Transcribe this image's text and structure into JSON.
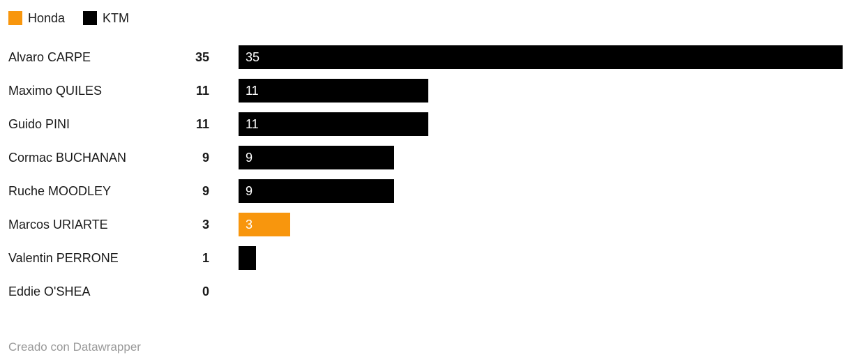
{
  "legend": {
    "items": [
      {
        "id": "honda",
        "label": "Honda",
        "color": "#F8960D"
      },
      {
        "id": "ktm",
        "label": "KTM",
        "color": "#000000"
      }
    ]
  },
  "footer": {
    "text": "Creado con Datawrapper"
  },
  "chart_data": {
    "type": "bar",
    "orientation": "horizontal",
    "title": "",
    "xlabel": "",
    "ylabel": "",
    "xlim": [
      0,
      35
    ],
    "grid": false,
    "legend_position": "top-left",
    "value_labels": "inside-bar-left-white",
    "categories": [
      "Alvaro CARPE",
      "Maximo QUILES",
      "Guido PINI",
      "Cormac BUCHANAN",
      "Ruche MOODLEY",
      "Marcos URIARTE",
      "Valentin PERRONE",
      "Eddie O'SHEA"
    ],
    "values": [
      35,
      11,
      11,
      9,
      9,
      3,
      1,
      0
    ],
    "teams": [
      "KTM",
      "KTM",
      "KTM",
      "KTM",
      "KTM",
      "Honda",
      "KTM",
      null
    ],
    "team_colors": {
      "Honda": "#F8960D",
      "KTM": "#000000"
    },
    "min_value_for_inside_label": 3
  }
}
